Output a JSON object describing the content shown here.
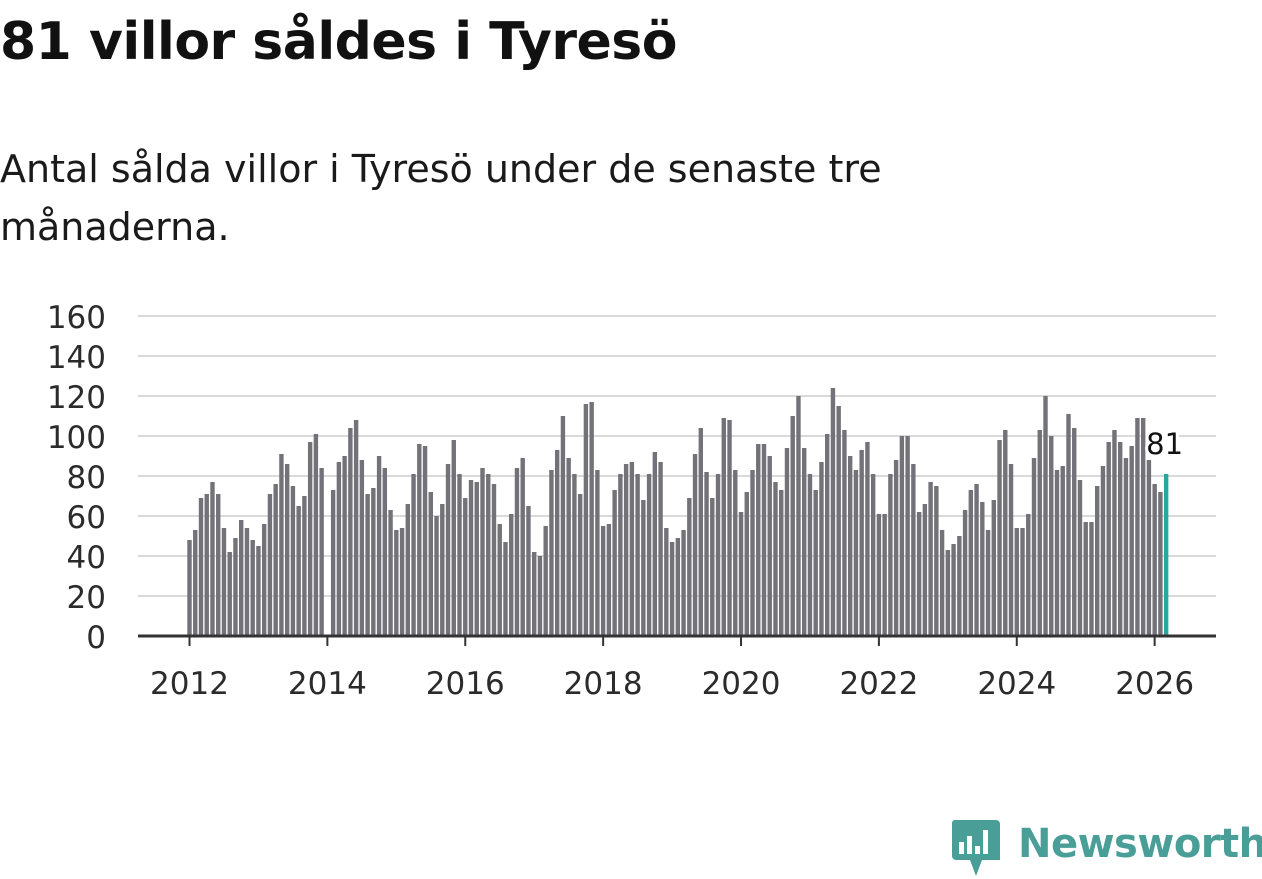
{
  "header": {
    "title": "81 villor såldes i Tyresö",
    "subtitle": "Antal sålda villor i Tyresö under de senaste tre månaderna."
  },
  "chart_data": {
    "type": "bar",
    "title": "81 villor såldes i Tyresö",
    "subtitle": "Antal sålda villor i Tyresö under de senaste tre månaderna.",
    "xlabel": "",
    "ylabel": "",
    "ylim": [
      0,
      160
    ],
    "yticks": [
      0,
      20,
      40,
      60,
      80,
      100,
      120,
      140,
      160
    ],
    "xtick_labels": [
      "2012",
      "2014",
      "2016",
      "2018",
      "2020",
      "2022",
      "2024",
      "2026"
    ],
    "grid": true,
    "start_year": 2012,
    "start_month": 1,
    "highlight_label": "81",
    "series": [
      {
        "name": "Antal sålda villor",
        "color": "#737278",
        "highlight_color": "#2aa6a0",
        "values": [
          48,
          53,
          69,
          71,
          77,
          71,
          54,
          42,
          49,
          58,
          54,
          48,
          45,
          56,
          71,
          76,
          91,
          86,
          75,
          65,
          70,
          97,
          101,
          84,
          0,
          73,
          87,
          90,
          104,
          108,
          88,
          71,
          74,
          90,
          84,
          63,
          53,
          54,
          66,
          81,
          96,
          95,
          72,
          60,
          66,
          86,
          98,
          81,
          69,
          78,
          77,
          84,
          81,
          76,
          56,
          47,
          61,
          84,
          89,
          65,
          42,
          40,
          55,
          83,
          93,
          110,
          89,
          81,
          71,
          116,
          117,
          83,
          55,
          56,
          73,
          81,
          86,
          87,
          81,
          68,
          81,
          92,
          87,
          54,
          47,
          49,
          53,
          69,
          91,
          104,
          82,
          69,
          81,
          109,
          108,
          83,
          62,
          72,
          83,
          96,
          96,
          90,
          77,
          73,
          94,
          110,
          120,
          94,
          81,
          73,
          87,
          101,
          124,
          115,
          103,
          90,
          83,
          93,
          97,
          81,
          61,
          61,
          81,
          88,
          100,
          100,
          86,
          62,
          66,
          77,
          75,
          53,
          43,
          46,
          50,
          63,
          73,
          76,
          67,
          53,
          68,
          98,
          103,
          86,
          54,
          54,
          61,
          89,
          103,
          120,
          100,
          83,
          85,
          111,
          104,
          78,
          57,
          57,
          75,
          85,
          97,
          103,
          97,
          89,
          95,
          109,
          109,
          88,
          76,
          72,
          81
        ]
      }
    ]
  },
  "branding": {
    "name": "Newsworthy",
    "accent": "#4a9e98"
  }
}
